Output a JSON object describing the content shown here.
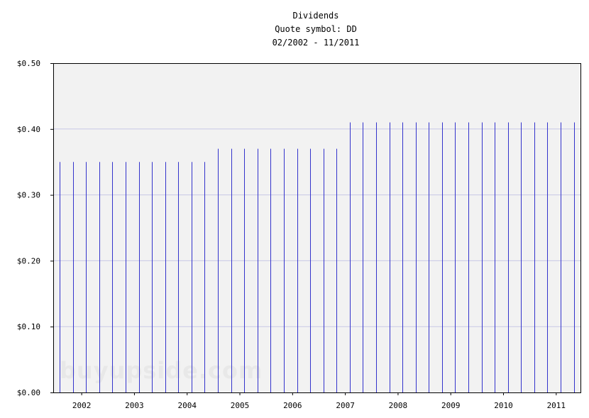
{
  "chart_data": {
    "type": "bar",
    "title": "Dividends",
    "subtitle": "Quote symbol: DD",
    "date_range": "02/2002 - 11/2011",
    "ylim": [
      0,
      0.5
    ],
    "y_ticks": [
      {
        "value": 0.0,
        "label": "$0.00"
      },
      {
        "value": 0.1,
        "label": "$0.10"
      },
      {
        "value": 0.2,
        "label": "$0.20"
      },
      {
        "value": 0.3,
        "label": "$0.30"
      },
      {
        "value": 0.4,
        "label": "$0.40"
      },
      {
        "value": 0.5,
        "label": "$0.50"
      }
    ],
    "x_ticks": [
      "2002",
      "2003",
      "2004",
      "2005",
      "2006",
      "2007",
      "2008",
      "2009",
      "2010",
      "2011"
    ],
    "grid": true,
    "colors": {
      "bar": "#3333cc",
      "plot_bg": "#f2f2f2",
      "grid": "#c8c8e6",
      "axis": "#000000"
    },
    "series": [
      {
        "values": [
          {
            "x": "2002-02",
            "y": 0.35
          },
          {
            "x": "2002-05",
            "y": 0.35
          },
          {
            "x": "2002-08",
            "y": 0.35
          },
          {
            "x": "2002-11",
            "y": 0.35
          },
          {
            "x": "2003-02",
            "y": 0.35
          },
          {
            "x": "2003-05",
            "y": 0.35
          },
          {
            "x": "2003-08",
            "y": 0.35
          },
          {
            "x": "2003-11",
            "y": 0.35
          },
          {
            "x": "2004-02",
            "y": 0.35
          },
          {
            "x": "2004-05",
            "y": 0.35
          },
          {
            "x": "2004-08",
            "y": 0.35
          },
          {
            "x": "2004-11",
            "y": 0.35
          },
          {
            "x": "2005-02",
            "y": 0.37
          },
          {
            "x": "2005-05",
            "y": 0.37
          },
          {
            "x": "2005-08",
            "y": 0.37
          },
          {
            "x": "2005-11",
            "y": 0.37
          },
          {
            "x": "2006-02",
            "y": 0.37
          },
          {
            "x": "2006-05",
            "y": 0.37
          },
          {
            "x": "2006-08",
            "y": 0.37
          },
          {
            "x": "2006-11",
            "y": 0.37
          },
          {
            "x": "2007-02",
            "y": 0.37
          },
          {
            "x": "2007-05",
            "y": 0.37
          },
          {
            "x": "2007-08",
            "y": 0.41
          },
          {
            "x": "2007-11",
            "y": 0.41
          },
          {
            "x": "2008-02",
            "y": 0.41
          },
          {
            "x": "2008-05",
            "y": 0.41
          },
          {
            "x": "2008-08",
            "y": 0.41
          },
          {
            "x": "2008-11",
            "y": 0.41
          },
          {
            "x": "2009-02",
            "y": 0.41
          },
          {
            "x": "2009-05",
            "y": 0.41
          },
          {
            "x": "2009-08",
            "y": 0.41
          },
          {
            "x": "2009-11",
            "y": 0.41
          },
          {
            "x": "2010-02",
            "y": 0.41
          },
          {
            "x": "2010-05",
            "y": 0.41
          },
          {
            "x": "2010-08",
            "y": 0.41
          },
          {
            "x": "2010-11",
            "y": 0.41
          },
          {
            "x": "2011-02",
            "y": 0.41
          },
          {
            "x": "2011-05",
            "y": 0.41
          },
          {
            "x": "2011-08",
            "y": 0.41
          },
          {
            "x": "2011-11",
            "y": 0.41
          }
        ]
      }
    ]
  },
  "watermark": "buyupside.com"
}
